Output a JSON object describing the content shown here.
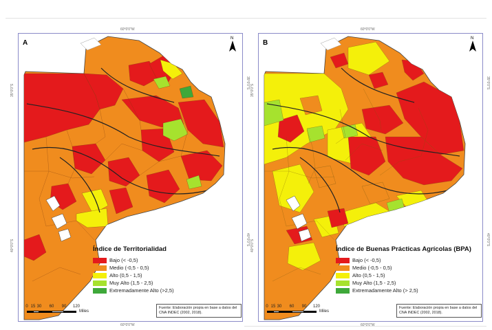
{
  "coordinates": {
    "lon_top": "60°0'0\"W",
    "lon_bottom": "60°0'0\"W",
    "lat_upper": "35°0'0\"S",
    "lat_lower": "40°0'0\"S"
  },
  "colors": {
    "bajo": "#e41a1c",
    "medio": "#f08c1e",
    "alto": "#f4f00a",
    "muy_alto": "#a6e22e",
    "extremadamente_alto": "#3ea83a",
    "frame": "#8a8ac8"
  },
  "panels": [
    {
      "letter": "A",
      "legend_title": "Índice de Territorialidad",
      "legend_items": [
        {
          "label": "Bajo (< -0,5)",
          "color_key": "bajo"
        },
        {
          "label": "Medio (-0,5 - 0,5)",
          "color_key": "medio"
        },
        {
          "label": "Alto (0,5 - 1,5)",
          "color_key": "alto"
        },
        {
          "label": "Muy Alto (1,5 - 2,5)",
          "color_key": "muy_alto"
        },
        {
          "label": "Extremadamente Alto (>2,5)",
          "color_key": "extremadamente_alto"
        }
      ],
      "source": "Fuente: Elaboración propia en base a datos del CNA INDEC (2002, 2018).",
      "north": "N",
      "scale_ticks": [
        "0",
        "15",
        "30",
        "60",
        "90",
        "120"
      ],
      "scale_unit": "Miles"
    },
    {
      "letter": "B",
      "legend_title": "Índice de Buenas Prácticas Agrícolas (BPA)",
      "legend_items": [
        {
          "label": "Bajo (< -0,5)",
          "color_key": "bajo"
        },
        {
          "label": "Medio (-0,5 - 0,5)",
          "color_key": "medio"
        },
        {
          "label": "Alto (0,5 - 1,5)",
          "color_key": "alto"
        },
        {
          "label": "Muy Alto (1,5 - 2,5)",
          "color_key": "muy_alto"
        },
        {
          "label": "Extremadamente Alto (> 2,5)",
          "color_key": "extremadamente_alto"
        }
      ],
      "source": "Fuente: Elaboración propia en base a datos del CNA INDEC (2002, 2018).",
      "north": "N",
      "scale_ticks": [
        "0",
        "15",
        "30",
        "60",
        "90",
        "120"
      ],
      "scale_unit": "Miles"
    }
  ]
}
